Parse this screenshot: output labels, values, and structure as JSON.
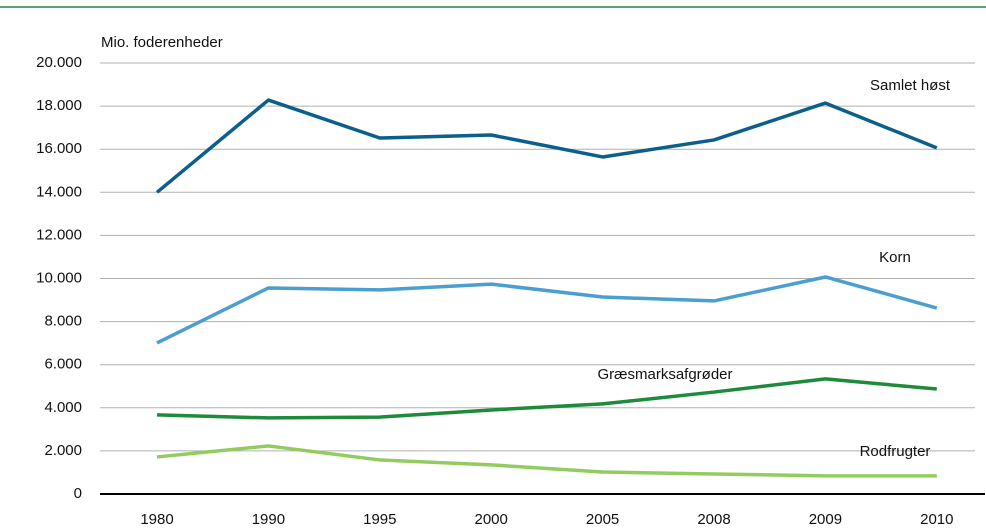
{
  "chart_data": {
    "type": "line",
    "y_axis_label": "Mio. foderenheder",
    "categories": [
      "1980",
      "1990",
      "1995",
      "2000",
      "2005",
      "2008",
      "2009",
      "2010"
    ],
    "series": [
      {
        "name": "Samlet høst",
        "color": "#0b5f8a",
        "values": [
          14000,
          18280,
          16520,
          16660,
          15640,
          16430,
          18140,
          16060
        ]
      },
      {
        "name": "Korn",
        "color": "#4a9fd0",
        "values": [
          7010,
          9560,
          9470,
          9740,
          9140,
          8960,
          10070,
          8630
        ]
      },
      {
        "name": "Græsmarksafgrøder",
        "color": "#1e8a3c",
        "values": [
          3670,
          3530,
          3570,
          3900,
          4180,
          4730,
          5340,
          4870
        ]
      },
      {
        "name": "Rodfrugter",
        "color": "#92cc5e",
        "values": [
          1720,
          2230,
          1580,
          1350,
          1020,
          930,
          840,
          840
        ]
      }
    ],
    "ylim": [
      0,
      20000
    ],
    "yticks": [
      0,
      {
        "value": 2000,
        "label": "2.000"
      },
      {
        "value": 4000,
        "label": "4.000"
      },
      {
        "value": 6000,
        "label": "6.000"
      },
      {
        "value": 8000,
        "label": "8.000"
      },
      {
        "value": 10000,
        "label": "10.000"
      },
      {
        "value": 12000,
        "label": "12.000"
      },
      {
        "value": 14000,
        "label": "14.000"
      },
      {
        "value": 16000,
        "label": "16.000"
      },
      {
        "value": 18000,
        "label": "18.000"
      },
      {
        "value": 20000,
        "label": "20.000"
      }
    ],
    "grid": true
  }
}
